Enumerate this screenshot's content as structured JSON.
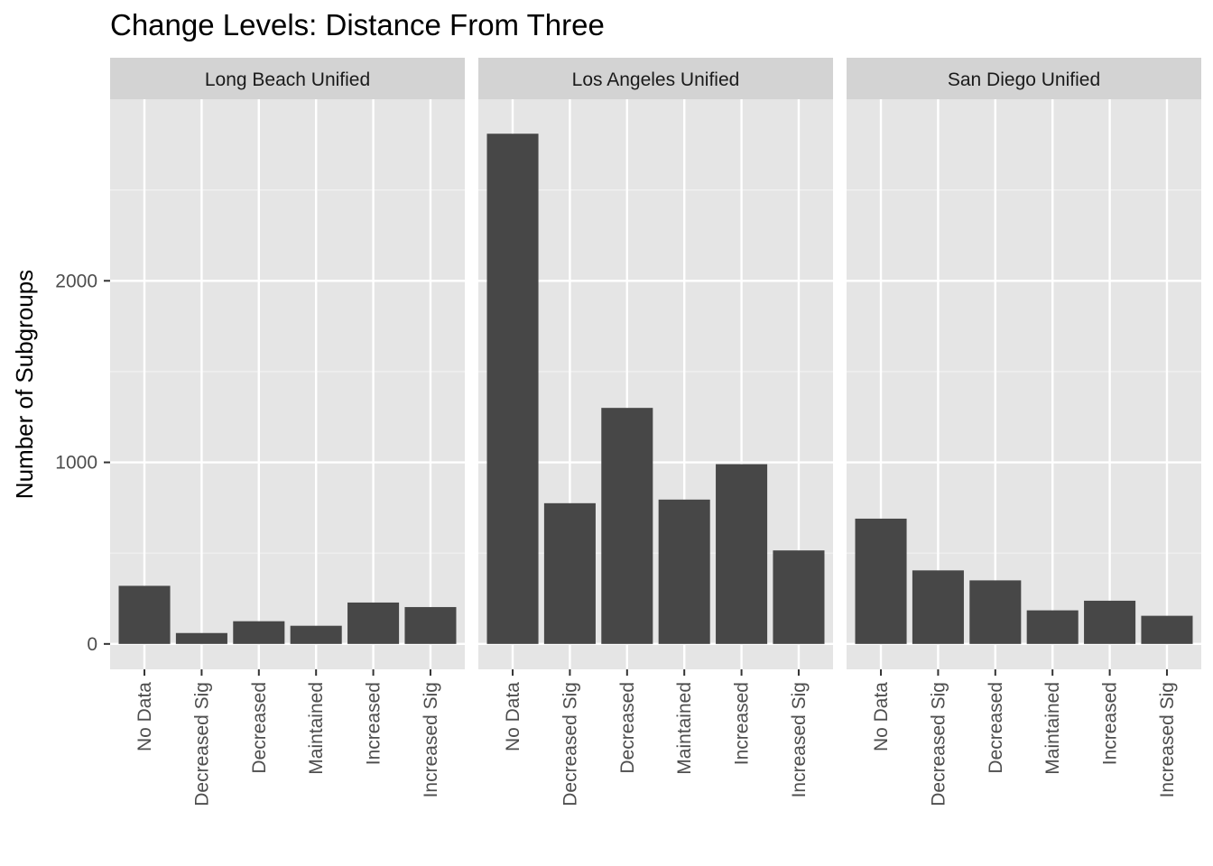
{
  "chart_data": {
    "type": "bar",
    "title": "Change Levels: Distance From Three",
    "xlabel": "",
    "ylabel": "Number of Subgroups",
    "ylim": [
      -140,
      3000
    ],
    "yticks": [
      0,
      1000,
      2000
    ],
    "grid": true,
    "categories": [
      "No Data",
      "Decreased Sig",
      "Decreased",
      "Maintained",
      "Increased",
      "Increased Sig"
    ],
    "facets": [
      {
        "name": "Long Beach Unified",
        "values": [
          320,
          60,
          125,
          100,
          228,
          203
        ]
      },
      {
        "name": "Los Angeles Unified",
        "values": [
          2810,
          775,
          1300,
          795,
          990,
          515
        ]
      },
      {
        "name": "San Diego Unified",
        "values": [
          690,
          405,
          350,
          185,
          238,
          155
        ]
      }
    ],
    "bar_color": "#474747",
    "panel_color": "#e5e5e5",
    "strip_color": "#d3d3d3"
  }
}
